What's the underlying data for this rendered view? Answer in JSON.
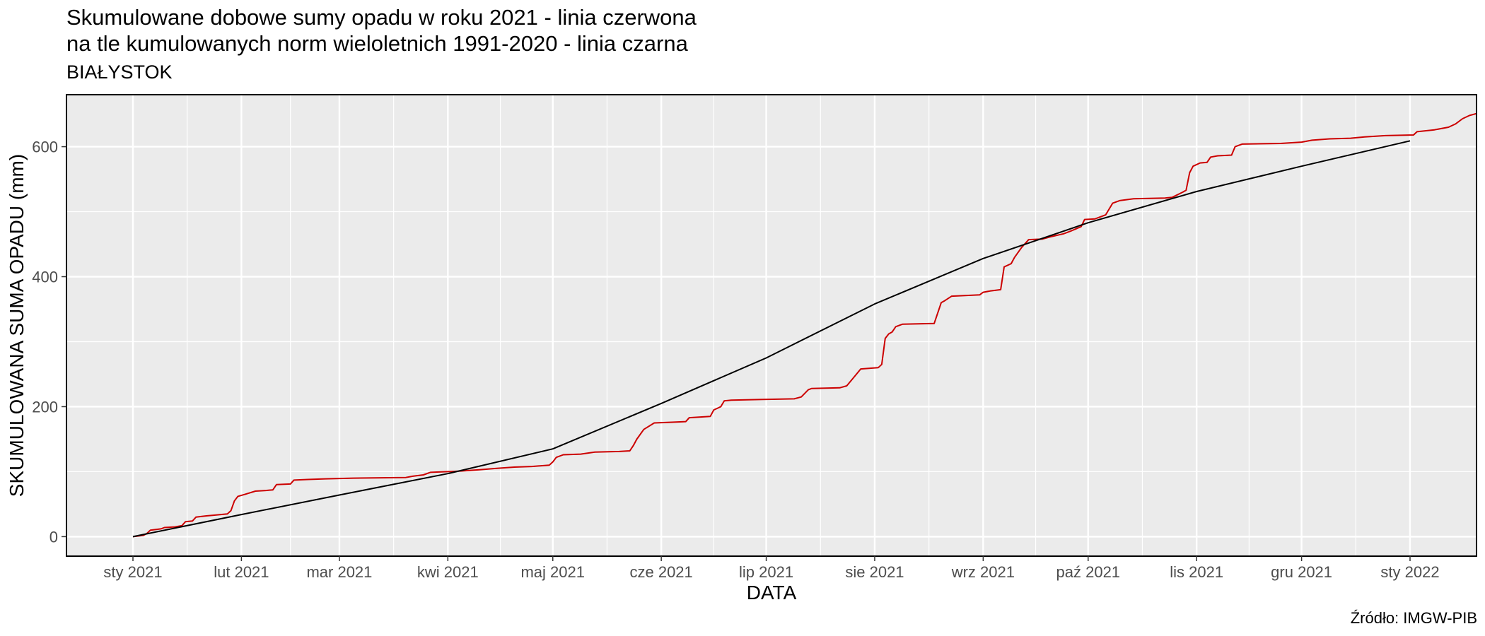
{
  "chart_data": {
    "type": "line",
    "title_lines": [
      "Skumulowane dobowe sumy opadu w roku 2021 - linia czerwona",
      "na tle kumulowanych norm wieloletnich 1991-2020 - linia czarna"
    ],
    "subtitle": "BIAŁYSTOK",
    "caption": "Źródło: IMGW-PIB",
    "xlabel": "DATA",
    "ylabel": "SKUMULOWANA SUMA OPADU (mm)",
    "x_axis": {
      "type": "date",
      "range": [
        "2020-12-13",
        "2022-01-20"
      ],
      "ticks": [
        {
          "date": "2021-01-01",
          "label": "sty 2021"
        },
        {
          "date": "2021-02-01",
          "label": "lut 2021"
        },
        {
          "date": "2021-03-01",
          "label": "mar 2021"
        },
        {
          "date": "2021-04-01",
          "label": "kwi 2021"
        },
        {
          "date": "2021-05-01",
          "label": "maj 2021"
        },
        {
          "date": "2021-06-01",
          "label": "cze 2021"
        },
        {
          "date": "2021-07-01",
          "label": "lip 2021"
        },
        {
          "date": "2021-08-01",
          "label": "sie 2021"
        },
        {
          "date": "2021-09-01",
          "label": "wrz 2021"
        },
        {
          "date": "2021-10-01",
          "label": "paź 2021"
        },
        {
          "date": "2021-11-01",
          "label": "lis 2021"
        },
        {
          "date": "2021-12-01",
          "label": "gru 2021"
        },
        {
          "date": "2022-01-01",
          "label": "sty 2022"
        }
      ]
    },
    "y_axis": {
      "range": [
        -30,
        680
      ],
      "ticks": [
        0,
        200,
        400,
        600
      ]
    },
    "grid": true,
    "panel_background": "#ebebeb",
    "series": [
      {
        "color": "#cc0000",
        "points": [
          [
            "2021-01-01",
            0
          ],
          [
            "2021-01-04",
            2
          ],
          [
            "2021-01-05",
            5
          ],
          [
            "2021-01-06",
            10
          ],
          [
            "2021-01-09",
            12
          ],
          [
            "2021-01-10",
            14
          ],
          [
            "2021-01-13",
            15
          ],
          [
            "2021-01-15",
            17
          ],
          [
            "2021-01-16",
            23
          ],
          [
            "2021-01-18",
            24
          ],
          [
            "2021-01-19",
            30
          ],
          [
            "2021-01-22",
            32
          ],
          [
            "2021-01-24",
            33
          ],
          [
            "2021-01-28",
            35
          ],
          [
            "2021-01-29",
            40
          ],
          [
            "2021-01-30",
            55
          ],
          [
            "2021-01-31",
            62
          ],
          [
            "2021-02-02",
            65
          ],
          [
            "2021-02-05",
            70
          ],
          [
            "2021-02-08",
            71
          ],
          [
            "2021-02-10",
            72
          ],
          [
            "2021-02-11",
            80
          ],
          [
            "2021-02-15",
            81
          ],
          [
            "2021-02-16",
            87
          ],
          [
            "2021-02-20",
            88
          ],
          [
            "2021-02-25",
            89
          ],
          [
            "2021-03-05",
            90
          ],
          [
            "2021-03-20",
            91
          ],
          [
            "2021-03-22",
            93
          ],
          [
            "2021-03-25",
            95
          ],
          [
            "2021-03-27",
            99
          ],
          [
            "2021-04-01",
            100
          ],
          [
            "2021-04-05",
            101
          ],
          [
            "2021-04-10",
            103
          ],
          [
            "2021-04-15",
            105
          ],
          [
            "2021-04-20",
            107
          ],
          [
            "2021-04-25",
            108
          ],
          [
            "2021-04-30",
            110
          ],
          [
            "2021-05-01",
            115
          ],
          [
            "2021-05-02",
            122
          ],
          [
            "2021-05-04",
            126
          ],
          [
            "2021-05-09",
            127
          ],
          [
            "2021-05-13",
            130
          ],
          [
            "2021-05-20",
            131
          ],
          [
            "2021-05-23",
            132
          ],
          [
            "2021-05-24",
            140
          ],
          [
            "2021-05-25",
            150
          ],
          [
            "2021-05-27",
            165
          ],
          [
            "2021-05-30",
            175
          ],
          [
            "2021-06-04",
            176
          ],
          [
            "2021-06-08",
            177
          ],
          [
            "2021-06-09",
            183
          ],
          [
            "2021-06-15",
            185
          ],
          [
            "2021-06-16",
            195
          ],
          [
            "2021-06-18",
            200
          ],
          [
            "2021-06-19",
            209
          ],
          [
            "2021-06-21",
            210
          ],
          [
            "2021-06-30",
            211
          ],
          [
            "2021-07-09",
            212
          ],
          [
            "2021-07-11",
            215
          ],
          [
            "2021-07-13",
            226
          ],
          [
            "2021-07-14",
            228
          ],
          [
            "2021-07-22",
            229
          ],
          [
            "2021-07-24",
            232
          ],
          [
            "2021-07-26",
            245
          ],
          [
            "2021-07-28",
            258
          ],
          [
            "2021-08-02",
            260
          ],
          [
            "2021-08-03",
            265
          ],
          [
            "2021-08-04",
            305
          ],
          [
            "2021-08-05",
            312
          ],
          [
            "2021-08-06",
            315
          ],
          [
            "2021-08-07",
            323
          ],
          [
            "2021-08-09",
            327
          ],
          [
            "2021-08-18",
            328
          ],
          [
            "2021-08-20",
            360
          ],
          [
            "2021-08-21",
            363
          ],
          [
            "2021-08-23",
            370
          ],
          [
            "2021-08-31",
            372
          ],
          [
            "2021-09-01",
            376
          ],
          [
            "2021-09-03",
            378
          ],
          [
            "2021-09-06",
            380
          ],
          [
            "2021-09-07",
            415
          ],
          [
            "2021-09-09",
            420
          ],
          [
            "2021-09-10",
            430
          ],
          [
            "2021-09-12",
            445
          ],
          [
            "2021-09-14",
            457
          ],
          [
            "2021-09-18",
            458
          ],
          [
            "2021-09-20",
            461
          ],
          [
            "2021-09-24",
            466
          ],
          [
            "2021-09-26",
            470
          ],
          [
            "2021-09-29",
            477
          ],
          [
            "2021-09-30",
            488
          ],
          [
            "2021-10-03",
            489
          ],
          [
            "2021-10-06",
            495
          ],
          [
            "2021-10-08",
            513
          ],
          [
            "2021-10-10",
            517
          ],
          [
            "2021-10-14",
            520
          ],
          [
            "2021-10-23",
            521
          ],
          [
            "2021-10-25",
            522
          ],
          [
            "2021-10-28",
            530
          ],
          [
            "2021-10-29",
            533
          ],
          [
            "2021-10-30",
            560
          ],
          [
            "2021-10-31",
            570
          ],
          [
            "2021-11-02",
            575
          ],
          [
            "2021-11-04",
            576
          ],
          [
            "2021-11-05",
            584
          ],
          [
            "2021-11-07",
            586
          ],
          [
            "2021-11-11",
            587
          ],
          [
            "2021-11-12",
            600
          ],
          [
            "2021-11-14",
            604
          ],
          [
            "2021-11-25",
            605
          ],
          [
            "2021-12-01",
            607
          ],
          [
            "2021-12-04",
            610
          ],
          [
            "2021-12-09",
            612
          ],
          [
            "2021-12-15",
            613
          ],
          [
            "2021-12-19",
            615
          ],
          [
            "2021-12-25",
            617
          ],
          [
            "2022-01-02",
            618
          ],
          [
            "2022-01-03",
            623
          ],
          [
            "2022-01-08",
            626
          ],
          [
            "2022-01-12",
            630
          ],
          [
            "2022-01-14",
            635
          ],
          [
            "2022-01-16",
            643
          ],
          [
            "2022-01-18",
            648
          ],
          [
            "2022-01-20",
            651
          ]
        ]
      },
      {
        "color": "#000000",
        "points": [
          [
            "2021-01-01",
            0
          ],
          [
            "2021-02-01",
            34
          ],
          [
            "2021-03-01",
            64
          ],
          [
            "2021-04-01",
            97
          ],
          [
            "2021-05-01",
            135
          ],
          [
            "2021-06-01",
            205
          ],
          [
            "2021-07-01",
            275
          ],
          [
            "2021-08-01",
            358
          ],
          [
            "2021-09-01",
            428
          ],
          [
            "2021-10-01",
            483
          ],
          [
            "2021-11-01",
            531
          ],
          [
            "2021-12-01",
            570
          ],
          [
            "2022-01-01",
            609
          ]
        ]
      }
    ]
  }
}
